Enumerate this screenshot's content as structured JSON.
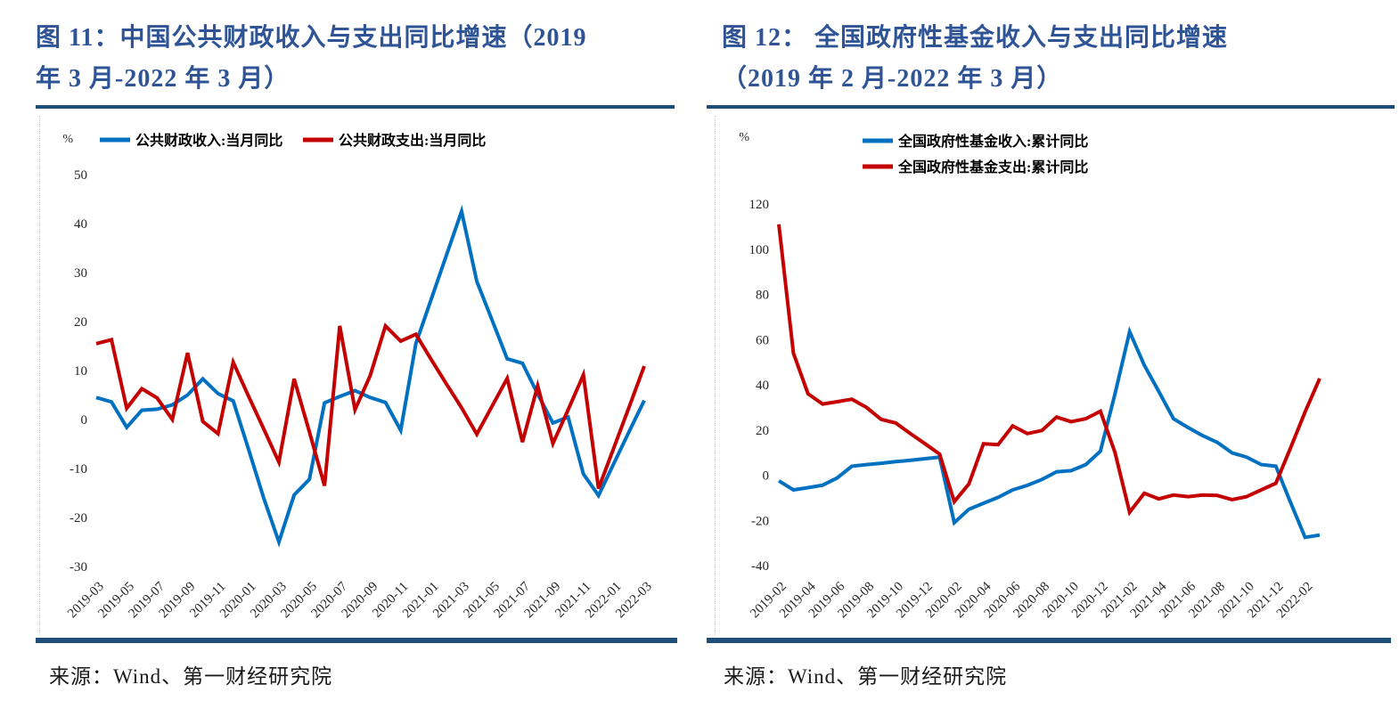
{
  "colors": {
    "title_blue": "#2F5496",
    "rule_blue": "#1F4E79",
    "line_blue": "#0070C0",
    "line_red": "#C40000",
    "axis_text": "#262626"
  },
  "panels": [
    {
      "title_lines": [
        "图 11：中国公共财政收入与支出同比增速（2019",
        "年 3 月-2022 年 3 月）"
      ],
      "source": "来源：Wind、第一财经研究院"
    },
    {
      "title_lines": [
        "图 12： 全国政府性基金收入与支出同比增速",
        "（2019 年 2 月-2022 年 3 月）"
      ],
      "source": "来源：Wind、第一财经研究院"
    }
  ],
  "chart_data": [
    {
      "type": "line",
      "title": "中国公共财政收入与支出同比增速（2019 年 3 月-2022 年 3 月）",
      "unit": "%",
      "grid": false,
      "legend_position": "top",
      "legend_layout": "row",
      "ylim": [
        -30,
        50
      ],
      "ytick_step": 10,
      "ytick_labels": [
        "50",
        "40",
        "30",
        "20",
        "10",
        "0",
        "-10",
        "-20",
        "-30"
      ],
      "x_tick_labels": [
        "2019-03",
        "2019-05",
        "2019-07",
        "2019-09",
        "2019-11",
        "2020-01",
        "2020-03",
        "2020-05",
        "2020-07",
        "2020-09",
        "2020-11",
        "2021-01",
        "2021-03",
        "2021-05",
        "2021-07",
        "2021-09",
        "2021-11",
        "2022-01",
        "2022-03"
      ],
      "categories": [
        "2019-03",
        "2019-04",
        "2019-05",
        "2019-06",
        "2019-07",
        "2019-08",
        "2019-09",
        "2019-10",
        "2019-11",
        "2019-12",
        "2020-01",
        "2020-02",
        "2020-03",
        "2020-04",
        "2020-05",
        "2020-06",
        "2020-07",
        "2020-08",
        "2020-09",
        "2020-10",
        "2020-11",
        "2020-12",
        "2021-01",
        "2021-02",
        "2021-03",
        "2021-04",
        "2021-05",
        "2021-06",
        "2021-07",
        "2021-08",
        "2021-09",
        "2021-10",
        "2021-11",
        "2021-12",
        "2022-01",
        "2022-02",
        "2022-03"
      ],
      "series": [
        {
          "name": "公共财政收入:当月同比",
          "color": "#0070C0",
          "values": [
            4.5,
            3.6,
            -1.6,
            1.9,
            2.1,
            3.0,
            5.0,
            8.3,
            5.3,
            3.8,
            -6.0,
            -16.0,
            -25.0,
            -15.4,
            -12.2,
            3.4,
            4.7,
            5.9,
            4.5,
            3.5,
            -2.2,
            15.5,
            24.5,
            33.5,
            42.5,
            28.2,
            20.3,
            12.4,
            11.5,
            5.2,
            -0.7,
            0.5,
            -11.1,
            -15.5,
            -9.0,
            -2.5,
            3.9
          ]
        },
        {
          "name": "公共财政支出:当月同比",
          "color": "#C40000",
          "values": [
            15.5,
            16.3,
            2.3,
            6.3,
            4.4,
            0.0,
            13.6,
            -0.4,
            -2.9,
            11.7,
            4.8,
            -1.9,
            -8.7,
            8.3,
            -2.5,
            -13.5,
            19.1,
            2.0,
            9.0,
            19.1,
            16.0,
            17.4,
            12.3,
            7.3,
            2.4,
            -3.0,
            2.7,
            8.4,
            -4.6,
            6.9,
            -4.9,
            2.0,
            9.1,
            -14.1,
            -5.8,
            2.5,
            10.9
          ]
        }
      ]
    },
    {
      "type": "line",
      "title": "全国政府性基金收入与支出同比增速（2019 年 2 月-2022 年 3 月）",
      "unit": "%",
      "grid": false,
      "legend_position": "top",
      "legend_layout": "column",
      "ylim": [
        -40,
        120
      ],
      "ytick_step": 20,
      "ytick_labels": [
        "120",
        "100",
        "80",
        "60",
        "40",
        "20",
        "0",
        "-20",
        "-40"
      ],
      "x_tick_labels": [
        "2019-02",
        "2019-04",
        "2019-06",
        "2019-08",
        "2019-10",
        "2019-12",
        "2020-02",
        "2020-04",
        "2020-06",
        "2020-08",
        "2020-10",
        "2020-12",
        "2021-02",
        "2021-04",
        "2021-06",
        "2021-08",
        "2021-10",
        "2021-12",
        "2022-02"
      ],
      "categories": [
        "2019-02",
        "2019-03",
        "2019-04",
        "2019-05",
        "2019-06",
        "2019-07",
        "2019-08",
        "2019-09",
        "2019-10",
        "2019-11",
        "2019-12",
        "2020-01",
        "2020-02",
        "2020-03",
        "2020-04",
        "2020-05",
        "2020-06",
        "2020-07",
        "2020-08",
        "2020-09",
        "2020-10",
        "2020-11",
        "2020-12",
        "2021-01",
        "2021-02",
        "2021-03",
        "2021-04",
        "2021-05",
        "2021-06",
        "2021-07",
        "2021-08",
        "2021-09",
        "2021-10",
        "2021-11",
        "2021-12",
        "2022-01",
        "2022-02",
        "2022-03"
      ],
      "series": [
        {
          "name": "全国政府性基金收入:累计同比",
          "color": "#0070C0",
          "values": [
            -2.5,
            -6.5,
            -5.5,
            -4.4,
            -1.2,
            4.0,
            4.7,
            5.3,
            6.0,
            6.6,
            7.3,
            8.0,
            -21.0,
            -15.1,
            -12.4,
            -9.8,
            -6.5,
            -4.5,
            -1.9,
            1.5,
            2.0,
            4.7,
            10.6,
            36.0,
            63.5,
            48.7,
            37.0,
            25.0,
            21.1,
            17.5,
            14.5,
            9.9,
            8.0,
            4.7,
            4.0,
            -12.0,
            -27.5,
            -26.5
          ]
        },
        {
          "name": "全国政府性基金支出:累计同比",
          "color": "#C40000",
          "values": [
            111.0,
            54.0,
            36.0,
            31.5,
            32.5,
            33.6,
            30.0,
            24.7,
            23.1,
            18.4,
            13.9,
            9.3,
            -11.7,
            -3.9,
            13.9,
            13.5,
            21.8,
            18.4,
            19.8,
            25.7,
            23.7,
            25.0,
            28.3,
            10.0,
            -16.4,
            -8.0,
            -10.5,
            -8.8,
            -9.5,
            -8.8,
            -9.0,
            -10.8,
            -9.5,
            -6.5,
            -3.6,
            12.0,
            28.0,
            42.8
          ]
        }
      ]
    }
  ]
}
